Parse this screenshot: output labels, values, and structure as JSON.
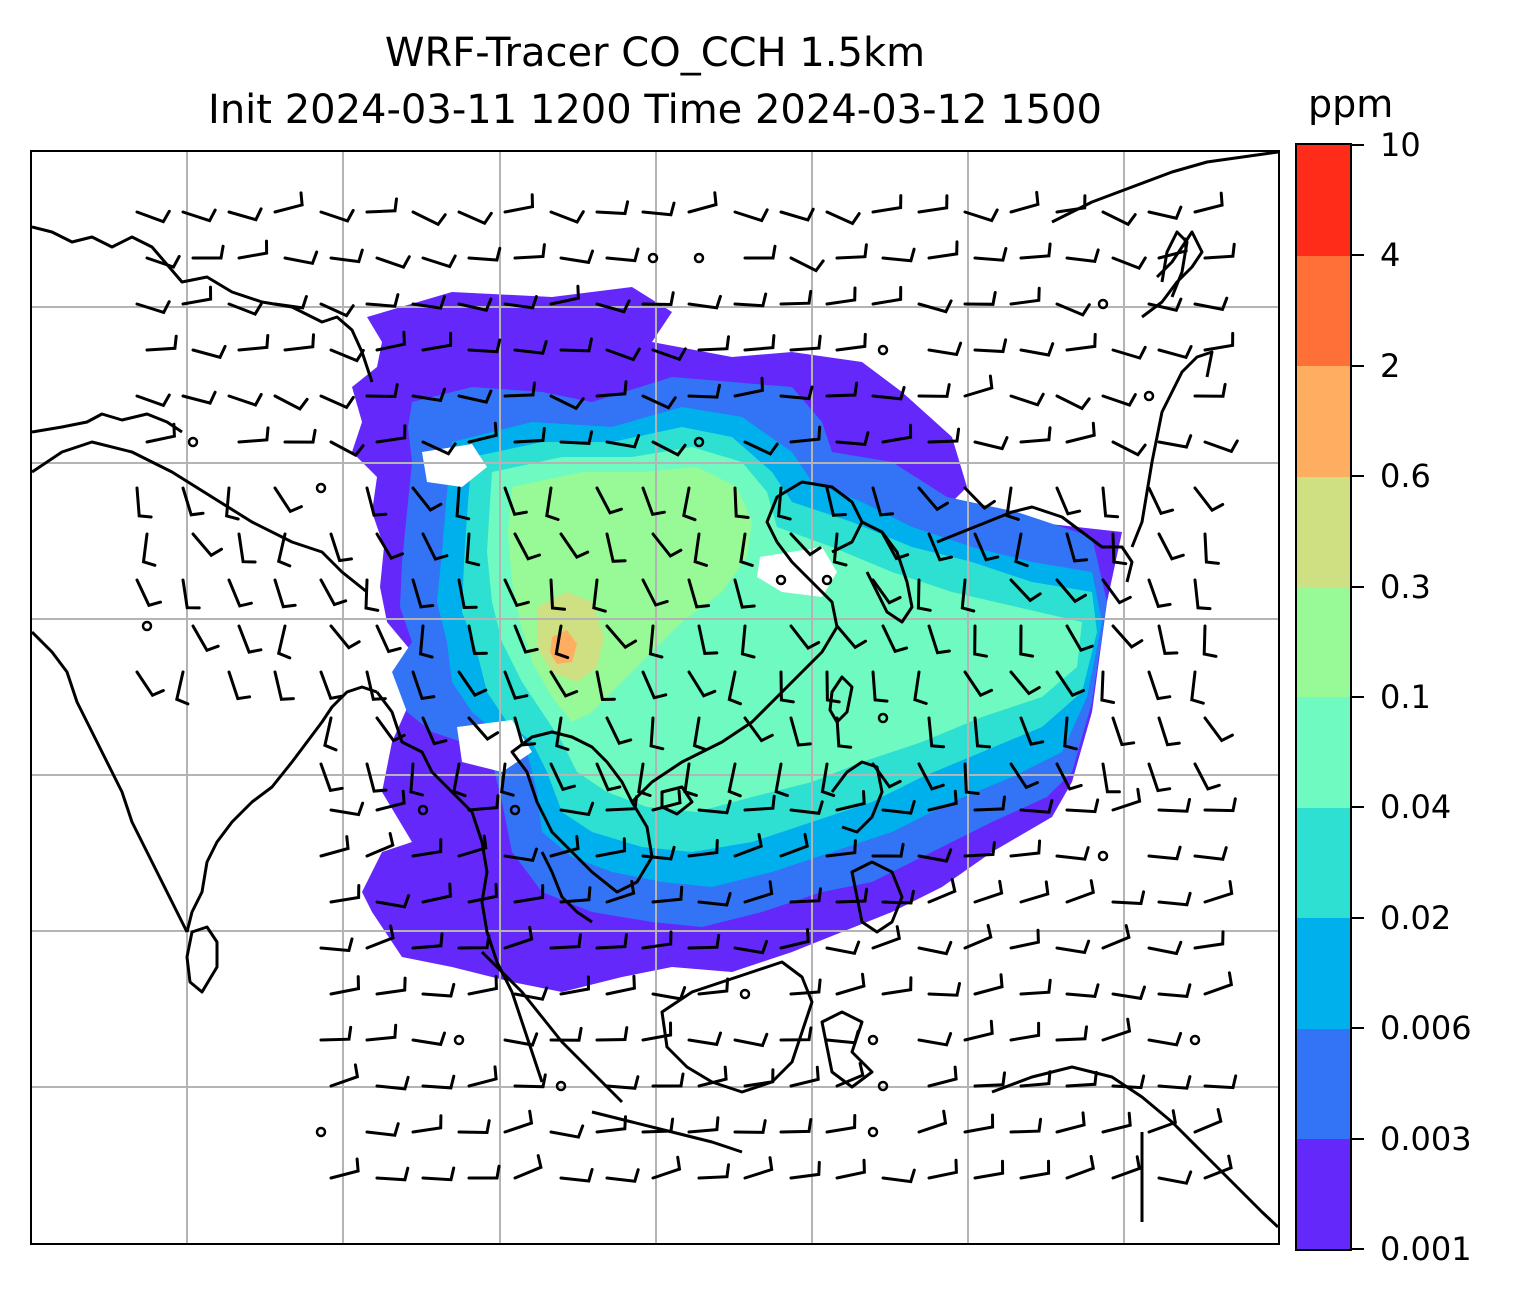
{
  "title": {
    "line1": "WRF-Tracer CO_CCH 1.5km",
    "line2": "Init 2024-03-11 1200 Time 2024-03-12 1500"
  },
  "colorbar": {
    "units": "ppm",
    "ticks": [
      "0.001",
      "0.003",
      "0.006",
      "0.02",
      "0.04",
      "0.1",
      "0.3",
      "0.6",
      "2",
      "4",
      "10"
    ],
    "colors": [
      "#6428fa",
      "#3274f5",
      "#00b0ec",
      "#2de0d2",
      "#6efac0",
      "#98fa96",
      "#cfe083",
      "#ffad60",
      "#ff7038",
      "#ff2c1a"
    ]
  },
  "map": {
    "coastline_color": "#000000",
    "gridline_color": "#b4b4b4",
    "barb_color": "#000000",
    "tracer_levels_shown": [
      "0.001",
      "0.003",
      "0.006",
      "0.02",
      "0.04",
      "0.1",
      "0.3",
      "0.6"
    ]
  }
}
